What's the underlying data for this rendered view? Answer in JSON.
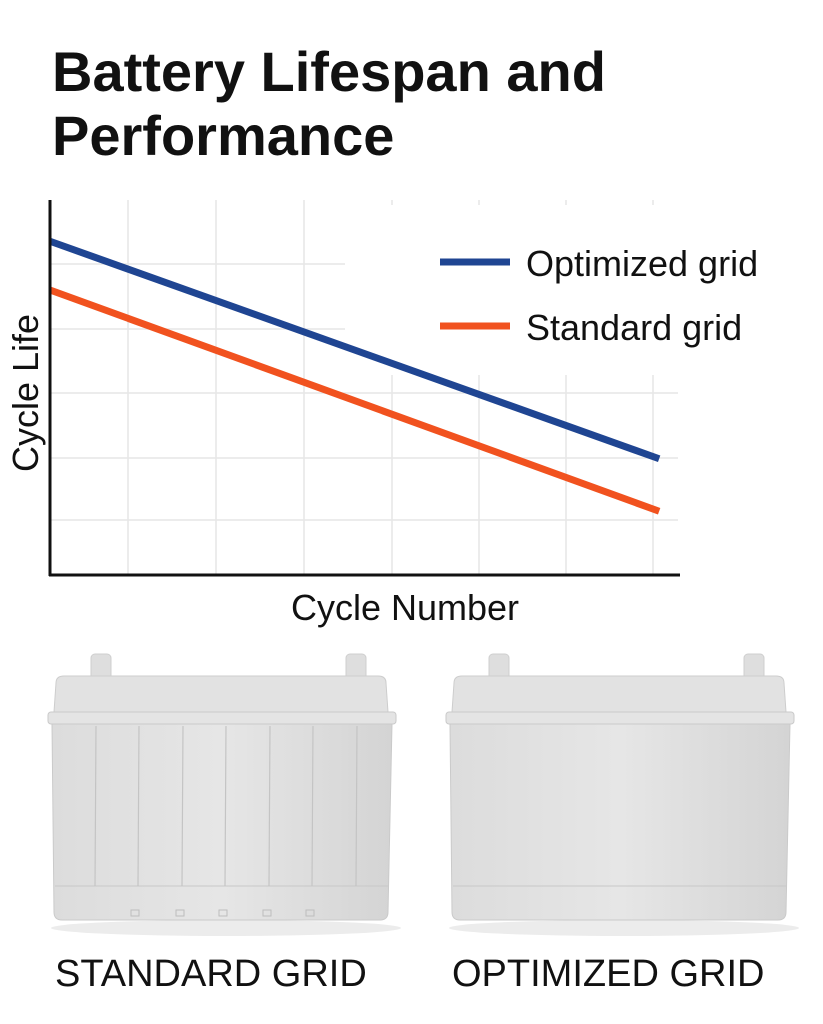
{
  "title_line1": "Battery Lifespan and",
  "title_line2": "Performance",
  "chart_data": {
    "type": "line",
    "title": "Battery Lifespan and Performance",
    "xlabel": "Cycle Number",
    "ylabel": "Cycle Life",
    "xlim": [
      0,
      10
    ],
    "ylim": [
      0,
      10
    ],
    "grid": true,
    "legend_placement": "top-right",
    "series": [
      {
        "name": "Optimized grid",
        "color": "#1f4592",
        "x": [
          0,
          9.7
        ],
        "y": [
          8.9,
          3.1
        ]
      },
      {
        "name": "Standard grid",
        "color": "#f1521f",
        "x": [
          0,
          9.7
        ],
        "y": [
          7.6,
          1.7
        ]
      }
    ]
  },
  "batteries": [
    {
      "label": "STANDARD GRID",
      "ribbed": true
    },
    {
      "label": "OPTIMIZED GRID",
      "ribbed": false
    }
  ]
}
